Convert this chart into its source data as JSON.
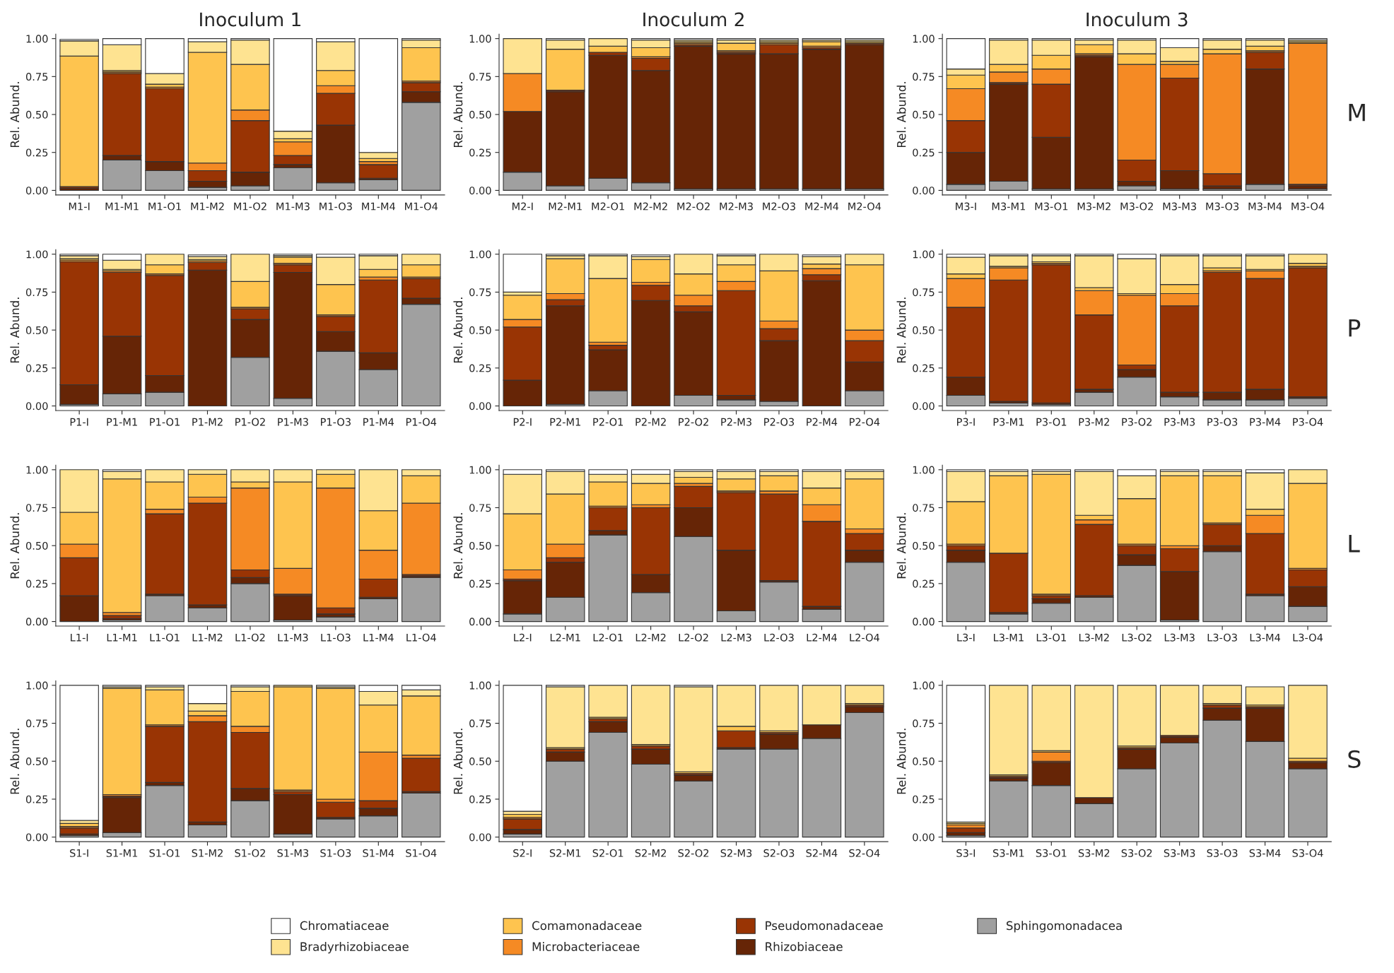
{
  "chart_data": [
    {
      "type": "bar",
      "stacked": true,
      "title": "Inoculum 1",
      "ylabel": "Rel. Abund.",
      "ylim": [
        -0.03,
        1.03
      ],
      "yticks": [
        {
          "value": 0,
          "label": "0.00"
        },
        {
          "value": 0.25,
          "label": "0.25"
        },
        {
          "value": 0.5,
          "label": "0.50"
        },
        {
          "value": 0.75,
          "label": "0.75"
        },
        {
          "value": 1,
          "label": "1.00"
        }
      ],
      "grid": false,
      "categories": [
        "M1-I",
        "M1-M1",
        "M1-O1",
        "M1-M2",
        "M1-O2",
        "M1-M3",
        "M1-O3",
        "M1-M4",
        "M1-O4"
      ],
      "series": [
        {
          "color": "#a0a0a0",
          "values": [
            null,
            0.2,
            0.13,
            0.02,
            0.03,
            0.15,
            0.05,
            0.07,
            0.58
          ]
        },
        {
          "color": "#662506",
          "values": [
            0.015,
            0.03,
            0.06,
            0.04,
            0.09,
            0.02,
            0.38,
            0.01,
            0.07
          ]
        },
        {
          "color": "#993404",
          "values": [
            0.01,
            0.54,
            0.48,
            0.07,
            0.34,
            0.06,
            0.21,
            0.09,
            0.06
          ]
        },
        {
          "color": "#f58a24",
          "values": [
            0,
            0.01,
            0.01,
            0.05,
            0.07,
            0.09,
            0.05,
            0.02,
            0.01
          ]
        },
        {
          "color": "#fec44f",
          "values": [
            0.86,
            0.01,
            0.02,
            0.73,
            0.3,
            0.02,
            0.1,
            0.02,
            0.22
          ]
        },
        {
          "color": "#fee391",
          "values": [
            0.1,
            0.17,
            0.07,
            0.07,
            0.16,
            0.05,
            0.19,
            0.04,
            0.05
          ]
        },
        {
          "color": "#ffffff",
          "values": [
            0.01,
            0.04,
            0.23,
            0.02,
            0.01,
            0.61,
            0.02,
            0.75,
            0.01
          ]
        }
      ]
    },
    {
      "type": "bar",
      "stacked": true,
      "title": "Inoculum 2",
      "ylabel": "Rel. Abund.",
      "ylim": [
        -0.03,
        1.03
      ],
      "yticks": [
        {
          "value": 0,
          "label": "0.00"
        },
        {
          "value": 0.25,
          "label": "0.25"
        },
        {
          "value": 0.5,
          "label": "0.50"
        },
        {
          "value": 0.75,
          "label": "0.75"
        },
        {
          "value": 1,
          "label": "1.00"
        }
      ],
      "grid": false,
      "categories": [
        "M2-I",
        "M2-M1",
        "M2-O1",
        "M2-M2",
        "M2-O2",
        "M2-M3",
        "M2-O3",
        "M2-M4",
        "M2-O4"
      ],
      "series": [
        {
          "color": "#a0a0a0",
          "values": [
            0.12,
            0.03,
            0.08,
            0.05,
            0.01,
            0.01,
            0.01,
            0.01,
            0.01
          ]
        },
        {
          "color": "#662506",
          "values": [
            0.4,
            0.62,
            0.81,
            0.74,
            0.94,
            0.89,
            0.89,
            0.92,
            0.95
          ]
        },
        {
          "color": "#993404",
          "values": [
            0,
            0.01,
            0.02,
            0.08,
            0.01,
            0.01,
            0.06,
            0.01,
            0.01
          ]
        },
        {
          "color": "#f58a24",
          "values": [
            0.25,
            0,
            0,
            0.01,
            0.01,
            0.01,
            0.01,
            0.01,
            0
          ]
        },
        {
          "color": "#fec44f",
          "values": [
            0,
            0.27,
            0.04,
            0.06,
            0.01,
            0.05,
            0.01,
            0.03,
            0.01
          ]
        },
        {
          "color": "#fee391",
          "values": [
            0.23,
            0.06,
            0.05,
            0.05,
            0.01,
            0.02,
            0.01,
            0.01,
            0.01
          ]
        },
        {
          "color": "#ffffff",
          "values": [
            0,
            0.01,
            0,
            0.01,
            0.01,
            0.01,
            0.01,
            0.01,
            0.01
          ]
        }
      ]
    },
    {
      "type": "bar",
      "stacked": true,
      "title": "Inoculum 3",
      "ylabel": "Rel. Abund.",
      "annotations": [
        "M"
      ],
      "ylim": [
        -0.03,
        1.03
      ],
      "yticks": [
        {
          "value": 0,
          "label": "0.00"
        },
        {
          "value": 0.25,
          "label": "0.25"
        },
        {
          "value": 0.5,
          "label": "0.50"
        },
        {
          "value": 0.75,
          "label": "0.75"
        },
        {
          "value": 1,
          "label": "1.00"
        }
      ],
      "grid": false,
      "categories": [
        "M3-I",
        "M3-M1",
        "M3-O1",
        "M3-M2",
        "M3-O2",
        "M3-M3",
        "M3-O3",
        "M3-M4",
        "M3-O4"
      ],
      "series": [
        {
          "color": "#a0a0a0",
          "values": [
            0.04,
            0.06,
            0.01,
            0.01,
            0.03,
            0.01,
            0.01,
            0.04,
            0.01
          ]
        },
        {
          "color": "#662506",
          "values": [
            0.21,
            0.64,
            0.34,
            0.87,
            0.03,
            0.12,
            0.02,
            0.76,
            0.02
          ]
        },
        {
          "color": "#993404",
          "values": [
            0.21,
            0.01,
            0.35,
            0.01,
            0.14,
            0.61,
            0.08,
            0.11,
            0.01
          ]
        },
        {
          "color": "#f58a24",
          "values": [
            0.21,
            0.07,
            0.1,
            0.01,
            0.63,
            0.09,
            0.79,
            0.01,
            0.93
          ]
        },
        {
          "color": "#fec44f",
          "values": [
            0.09,
            0.05,
            0.09,
            0.06,
            0.07,
            0.02,
            0.03,
            0.03,
            0.01
          ]
        },
        {
          "color": "#fee391",
          "values": [
            0.04,
            0.16,
            0.1,
            0.03,
            0.09,
            0.09,
            0.06,
            0.04,
            0.01
          ]
        },
        {
          "color": "#ffffff",
          "values": [
            0.2,
            0.01,
            0.01,
            0.01,
            0.01,
            0.06,
            0.01,
            0.01,
            0.01
          ]
        }
      ]
    },
    {
      "type": "bar",
      "stacked": true,
      "ylabel": "Rel. Abund.",
      "ylim": [
        -0.03,
        1.03
      ],
      "yticks": [
        {
          "value": 0,
          "label": "0.00"
        },
        {
          "value": 0.25,
          "label": "0.25"
        },
        {
          "value": 0.5,
          "label": "0.50"
        },
        {
          "value": 0.75,
          "label": "0.75"
        },
        {
          "value": 1,
          "label": "1.00"
        }
      ],
      "grid": false,
      "categories": [
        "P1-I",
        "P1-M1",
        "P1-O1",
        "P1-M2",
        "P1-O2",
        "P1-M3",
        "P1-O3",
        "P1-M4",
        "P1-O4"
      ],
      "series": [
        {
          "color": "#a0a0a0",
          "values": [
            0.01,
            0.08,
            0.09,
            null,
            0.32,
            0.05,
            0.36,
            0.24,
            0.67
          ]
        },
        {
          "color": "#662506",
          "values": [
            0.13,
            0.38,
            0.11,
            0.895,
            0.25,
            0.83,
            0.13,
            0.11,
            0.04
          ]
        },
        {
          "color": "#993404",
          "values": [
            0.81,
            0.42,
            0.66,
            0.05,
            0.07,
            0.05,
            0.1,
            0.48,
            0.13
          ]
        },
        {
          "color": "#f58a24",
          "values": [
            0.01,
            0.01,
            0.01,
            0.01,
            0.01,
            0.01,
            0.01,
            0.02,
            0.01
          ]
        },
        {
          "color": "#fec44f",
          "values": [
            0.01,
            0.01,
            0.06,
            0.01,
            0.17,
            0.04,
            0.2,
            0.05,
            0.08
          ]
        },
        {
          "color": "#fee391",
          "values": [
            0.02,
            0.06,
            0.07,
            0.02,
            0.18,
            0.01,
            0.18,
            0.09,
            0.07
          ]
        },
        {
          "color": "#ffffff",
          "values": [
            0.01,
            0.04,
            0,
            0.01,
            0,
            0.01,
            0.02,
            0.01,
            0
          ]
        }
      ]
    },
    {
      "type": "bar",
      "stacked": true,
      "ylabel": "Rel. Abund.",
      "ylim": [
        -0.03,
        1.03
      ],
      "yticks": [
        {
          "value": 0,
          "label": "0.00"
        },
        {
          "value": 0.25,
          "label": "0.25"
        },
        {
          "value": 0.5,
          "label": "0.50"
        },
        {
          "value": 0.75,
          "label": "0.75"
        },
        {
          "value": 1,
          "label": "1.00"
        }
      ],
      "grid": false,
      "categories": [
        "P2-I",
        "P2-M1",
        "P2-O1",
        "P2-M2",
        "P2-O2",
        "P2-M3",
        "P2-O3",
        "P2-M4",
        "P2-O4"
      ],
      "series": [
        {
          "color": "#a0a0a0",
          "values": [
            0,
            0.01,
            0.1,
            null,
            0.07,
            0.04,
            0.03,
            null,
            0.1
          ]
        },
        {
          "color": "#662506",
          "values": [
            0.17,
            0.65,
            0.27,
            0.695,
            0.55,
            0.03,
            0.4,
            0.825,
            0.19
          ]
        },
        {
          "color": "#993404",
          "values": [
            0.35,
            0.04,
            0.03,
            0.1,
            0.04,
            0.69,
            0.08,
            0.04,
            0.14
          ]
        },
        {
          "color": "#f58a24",
          "values": [
            0.05,
            0.04,
            0.02,
            0.02,
            0.07,
            0.06,
            0.05,
            0.04,
            0.07
          ]
        },
        {
          "color": "#fec44f",
          "values": [
            0.16,
            0.23,
            0.42,
            0.15,
            0.14,
            0.11,
            0.33,
            0.03,
            0.43
          ]
        },
        {
          "color": "#fee391",
          "values": [
            0.02,
            0.02,
            0.15,
            0.02,
            0.13,
            0.06,
            0.11,
            0.05,
            0.07
          ]
        },
        {
          "color": "#ffffff",
          "values": [
            0.25,
            0.01,
            0.01,
            0.01,
            0,
            0.01,
            0,
            0.01,
            0
          ]
        }
      ]
    },
    {
      "type": "bar",
      "stacked": true,
      "ylabel": "Rel. Abund.",
      "annotations": [
        "P"
      ],
      "ylim": [
        -0.03,
        1.03
      ],
      "yticks": [
        {
          "value": 0,
          "label": "0.00"
        },
        {
          "value": 0.25,
          "label": "0.25"
        },
        {
          "value": 0.5,
          "label": "0.50"
        },
        {
          "value": 0.75,
          "label": "0.75"
        },
        {
          "value": 1,
          "label": "1.00"
        }
      ],
      "grid": false,
      "categories": [
        "P3-I",
        "P3-M1",
        "P3-O1",
        "P3-M2",
        "P3-O2",
        "P3-M3",
        "P3-O3",
        "P3-M4",
        "P3-O4"
      ],
      "series": [
        {
          "color": "#a0a0a0",
          "values": [
            0.07,
            0.02,
            0.01,
            0.09,
            0.19,
            0.06,
            0.04,
            0.04,
            0.05
          ]
        },
        {
          "color": "#662506",
          "values": [
            0.12,
            0.01,
            0.01,
            0.02,
            0.05,
            0.03,
            0.05,
            0.07,
            0.01
          ]
        },
        {
          "color": "#993404",
          "values": [
            0.46,
            0.8,
            0.91,
            0.49,
            0.03,
            0.57,
            0.79,
            0.73,
            0.85
          ]
        },
        {
          "color": "#f58a24",
          "values": [
            0.19,
            0.08,
            0.01,
            0.16,
            0.46,
            0.08,
            0.01,
            0.05,
            0.01
          ]
        },
        {
          "color": "#fec44f",
          "values": [
            0.03,
            0.01,
            0.01,
            0.02,
            0.01,
            0.06,
            0.02,
            0.01,
            0.02
          ]
        },
        {
          "color": "#fee391",
          "values": [
            0.11,
            0.07,
            0.04,
            0.21,
            0.23,
            0.19,
            0.08,
            0.09,
            0.06
          ]
        },
        {
          "color": "#ffffff",
          "values": [
            0.02,
            0.01,
            0.01,
            0.01,
            0.03,
            0.01,
            0.01,
            0.01,
            0
          ]
        }
      ]
    },
    {
      "type": "bar",
      "stacked": true,
      "ylabel": "Rel. Abund.",
      "ylim": [
        -0.03,
        1.03
      ],
      "yticks": [
        {
          "value": 0,
          "label": "0.00"
        },
        {
          "value": 0.25,
          "label": "0.25"
        },
        {
          "value": 0.5,
          "label": "0.50"
        },
        {
          "value": 0.75,
          "label": "0.75"
        },
        {
          "value": 1,
          "label": "1.00"
        }
      ],
      "grid": false,
      "categories": [
        "L1-I",
        "L1-M1",
        "L1-O1",
        "L1-M2",
        "L1-O2",
        "L1-M3",
        "L1-O3",
        "L1-M4",
        "L1-O4"
      ],
      "series": [
        {
          "color": "#a0a0a0",
          "values": [
            0,
            0.01,
            0.17,
            0.09,
            0.25,
            0.01,
            0.03,
            0.15,
            0.29
          ]
        },
        {
          "color": "#662506",
          "values": [
            0.17,
            0.01,
            0.01,
            0.02,
            0.04,
            0.16,
            0.02,
            0.01,
            0.01
          ]
        },
        {
          "color": "#993404",
          "values": [
            0.25,
            0.02,
            0.53,
            0.67,
            0.05,
            0.01,
            0.04,
            0.12,
            0.01
          ]
        },
        {
          "color": "#f58a24",
          "values": [
            0.09,
            0.02,
            0.03,
            0.04,
            0.54,
            0.17,
            0.79,
            0.19,
            0.47
          ]
        },
        {
          "color": "#fec44f",
          "values": [
            0.21,
            0.88,
            0.18,
            0.15,
            0.04,
            0.57,
            0.09,
            0.26,
            0.18
          ]
        },
        {
          "color": "#fee391",
          "values": [
            0.28,
            0.05,
            0.08,
            0.03,
            0.08,
            0.08,
            0.03,
            0.27,
            0.04
          ]
        },
        {
          "color": "#ffffff",
          "values": [
            0,
            0.01,
            0,
            0,
            0,
            0,
            0,
            0,
            0
          ]
        }
      ]
    },
    {
      "type": "bar",
      "stacked": true,
      "ylabel": "Rel. Abund.",
      "ylim": [
        -0.03,
        1.03
      ],
      "yticks": [
        {
          "value": 0,
          "label": "0.00"
        },
        {
          "value": 0.25,
          "label": "0.25"
        },
        {
          "value": 0.5,
          "label": "0.50"
        },
        {
          "value": 0.75,
          "label": "0.75"
        },
        {
          "value": 1,
          "label": "1.00"
        }
      ],
      "grid": false,
      "categories": [
        "L2-I",
        "L2-M1",
        "L2-O1",
        "L2-M2",
        "L2-O2",
        "L2-M3",
        "L2-O3",
        "L2-M4",
        "L2-O4"
      ],
      "series": [
        {
          "color": "#a0a0a0",
          "values": [
            0.05,
            0.16,
            0.57,
            0.19,
            0.56,
            0.07,
            0.26,
            0.08,
            0.39
          ]
        },
        {
          "color": "#662506",
          "values": [
            0.22,
            0.23,
            0.03,
            0.12,
            0.19,
            0.4,
            0.01,
            0.02,
            0.08
          ]
        },
        {
          "color": "#993404",
          "values": [
            0.01,
            0.03,
            0.15,
            0.44,
            0.14,
            0.38,
            0.57,
            0.56,
            0.11
          ]
        },
        {
          "color": "#f58a24",
          "values": [
            0.06,
            0.09,
            0.01,
            0.02,
            0.02,
            0.01,
            0.02,
            0.11,
            0.03
          ]
        },
        {
          "color": "#fec44f",
          "values": [
            0.37,
            0.33,
            0.16,
            0.14,
            0.04,
            0.08,
            0.1,
            0.11,
            0.33
          ]
        },
        {
          "color": "#fee391",
          "values": [
            0.26,
            0.15,
            0.05,
            0.06,
            0.04,
            0.05,
            0.03,
            0.11,
            0.05
          ]
        },
        {
          "color": "#ffffff",
          "values": [
            0.03,
            0.01,
            0.03,
            0.03,
            0.01,
            0.01,
            0.01,
            0.01,
            0.01
          ]
        }
      ]
    },
    {
      "type": "bar",
      "stacked": true,
      "ylabel": "Rel. Abund.",
      "annotations": [
        "L"
      ],
      "ylim": [
        -0.03,
        1.03
      ],
      "yticks": [
        {
          "value": 0,
          "label": "0.00"
        },
        {
          "value": 0.25,
          "label": "0.25"
        },
        {
          "value": 0.5,
          "label": "0.50"
        },
        {
          "value": 0.75,
          "label": "0.75"
        },
        {
          "value": 1,
          "label": "1.00"
        }
      ],
      "grid": false,
      "categories": [
        "L3-I",
        "L3-M1",
        "L3-O1",
        "L3-M2",
        "L3-O2",
        "L3-M3",
        "L3-O3",
        "L3-M4",
        "L3-O4"
      ],
      "series": [
        {
          "color": "#a0a0a0",
          "values": [
            0.39,
            0.05,
            0.12,
            0.16,
            0.37,
            0.01,
            0.46,
            0.17,
            0.1
          ]
        },
        {
          "color": "#662506",
          "values": [
            0.08,
            0.01,
            0.03,
            0.01,
            0.07,
            0.32,
            0.04,
            0.01,
            0.13
          ]
        },
        {
          "color": "#993404",
          "values": [
            0.03,
            0.39,
            0.02,
            0.47,
            0.06,
            0.15,
            0.14,
            0.4,
            0.11
          ]
        },
        {
          "color": "#f58a24",
          "values": [
            0.01,
            0,
            0.01,
            0.03,
            0.01,
            0.02,
            0.01,
            0.12,
            0.01
          ]
        },
        {
          "color": "#fec44f",
          "values": [
            0.28,
            0.51,
            0.79,
            0.03,
            0.3,
            0.46,
            0.31,
            0.04,
            0.56
          ]
        },
        {
          "color": "#fee391",
          "values": [
            0.2,
            0.03,
            0.02,
            0.29,
            0.15,
            0.03,
            0.03,
            0.24,
            0.09
          ]
        },
        {
          "color": "#ffffff",
          "values": [
            0.01,
            0.01,
            0.01,
            0.01,
            0.04,
            0.01,
            0.01,
            0.02,
            0
          ]
        }
      ]
    },
    {
      "type": "bar",
      "stacked": true,
      "ylabel": "Rel. Abund.",
      "ylim": [
        -0.03,
        1.03
      ],
      "yticks": [
        {
          "value": 0,
          "label": "0.00"
        },
        {
          "value": 0.25,
          "label": "0.25"
        },
        {
          "value": 0.5,
          "label": "0.50"
        },
        {
          "value": 0.75,
          "label": "0.75"
        },
        {
          "value": 1,
          "label": "1.00"
        }
      ],
      "grid": false,
      "categories": [
        "S1-I",
        "S1-M1",
        "S1-O1",
        "S1-M2",
        "S1-O2",
        "S1-M3",
        "S1-O3",
        "S1-M4",
        "S1-O4"
      ],
      "series": [
        {
          "color": "#a0a0a0",
          "values": [
            0.01,
            0.03,
            0.34,
            0.08,
            0.24,
            0.02,
            0.12,
            0.14,
            0.29
          ]
        },
        {
          "color": "#662506",
          "values": [
            0.01,
            0.23,
            0.02,
            0.02,
            0.08,
            0.26,
            0.01,
            0.05,
            0.01
          ]
        },
        {
          "color": "#993404",
          "values": [
            0.04,
            0.01,
            0.37,
            0.66,
            0.37,
            0.02,
            0.1,
            0.05,
            0.22
          ]
        },
        {
          "color": "#f58a24",
          "values": [
            0.01,
            0.01,
            0.01,
            0.04,
            0.04,
            0.01,
            0.02,
            0.32,
            0.02
          ]
        },
        {
          "color": "#fec44f",
          "values": [
            0.02,
            0.7,
            0.23,
            0.03,
            0.23,
            0.68,
            0.73,
            0.31,
            0.39
          ]
        },
        {
          "color": "#fee391",
          "values": [
            0.02,
            0.01,
            0.02,
            0.05,
            0.03,
            0.01,
            0.01,
            0.09,
            0.04
          ]
        },
        {
          "color": "#ffffff",
          "values": [
            0.89,
            0.01,
            0.01,
            0.12,
            0.01,
            0,
            0.01,
            0.04,
            0.03
          ]
        }
      ]
    },
    {
      "type": "bar",
      "stacked": true,
      "ylabel": "Rel. Abund.",
      "legend": "bottom",
      "ylim": [
        -0.03,
        1.03
      ],
      "yticks": [
        {
          "value": 0,
          "label": "0.00"
        },
        {
          "value": 0.25,
          "label": "0.25"
        },
        {
          "value": 0.5,
          "label": "0.50"
        },
        {
          "value": 0.75,
          "label": "0.75"
        },
        {
          "value": 1,
          "label": "1.00"
        }
      ],
      "grid": false,
      "categories": [
        "S2-I",
        "S2-M1",
        "S2-O1",
        "S2-M2",
        "S2-O2",
        "S2-M3",
        "S2-O3",
        "S2-M4",
        "S2-O4"
      ],
      "series": [
        {
          "name": "Sphingomonadacea",
          "color": "#a0a0a0",
          "values": [
            0.02,
            0.5,
            0.69,
            0.48,
            0.37,
            0.58,
            0.58,
            0.65,
            0.82
          ]
        },
        {
          "name": "Rhizobiaceae",
          "color": "#662506",
          "values": [
            0.03,
            0.06,
            0.07,
            0.1,
            0.04,
            0.01,
            0.1,
            0.09,
            0.04
          ]
        },
        {
          "name": "Pseudomonadaceae",
          "color": "#993404",
          "values": [
            0.07,
            0.02,
            0.02,
            0.02,
            0.01,
            0.11,
            0.01,
            0,
            0.01
          ]
        },
        {
          "name": "Microbacteriaceae",
          "color": "#f58a24",
          "values": [
            0.01,
            0,
            0,
            0,
            0,
            0,
            0,
            0,
            0
          ]
        },
        {
          "name": "Comamonadaceae",
          "color": "#fec44f",
          "values": [
            0.02,
            0.01,
            0.01,
            0.01,
            0.01,
            0.03,
            0.01,
            0,
            0.01
          ]
        },
        {
          "name": "Bradyrhizobiaceae",
          "color": "#fee391",
          "values": [
            0.02,
            0.4,
            0.21,
            0.39,
            0.56,
            0.27,
            0.3,
            0.26,
            0.12
          ]
        },
        {
          "name": "Chromatiaceae",
          "color": "#ffffff",
          "values": [
            0.83,
            0.01,
            0,
            0,
            0.01,
            0,
            0,
            0,
            0
          ]
        }
      ]
    },
    {
      "type": "bar",
      "stacked": true,
      "ylabel": "Rel. Abund.",
      "annotations": [
        "S"
      ],
      "ylim": [
        -0.03,
        1.03
      ],
      "yticks": [
        {
          "value": 0,
          "label": "0.00"
        },
        {
          "value": 0.25,
          "label": "0.25"
        },
        {
          "value": 0.5,
          "label": "0.50"
        },
        {
          "value": 0.75,
          "label": "0.75"
        },
        {
          "value": 1,
          "label": "1.00"
        }
      ],
      "grid": false,
      "categories": [
        "S3-I",
        "S3-M1",
        "S3-O1",
        "S3-M2",
        "S3-O2",
        "S3-M3",
        "S3-O3",
        "S3-M4",
        "S3-O4"
      ],
      "series": [
        {
          "color": "#a0a0a0",
          "values": [
            0.01,
            0.37,
            0.34,
            0.22,
            0.45,
            0.62,
            0.77,
            0.63,
            0.45
          ]
        },
        {
          "color": "#662506",
          "values": [
            0.02,
            0.02,
            0.15,
            0.04,
            0.13,
            0.04,
            0.08,
            0.22,
            0.04
          ]
        },
        {
          "color": "#993404",
          "values": [
            0.03,
            0.01,
            0.01,
            0,
            0.01,
            0.01,
            0.02,
            0.01,
            0.01
          ]
        },
        {
          "color": "#f58a24",
          "values": [
            0.02,
            0,
            0.06,
            0,
            0,
            0,
            0,
            0,
            0
          ]
        },
        {
          "color": "#fec44f",
          "values": [
            0.01,
            0.01,
            0.01,
            0,
            0.01,
            0,
            0.01,
            0.01,
            0.02
          ]
        },
        {
          "color": "#fee391",
          "values": [
            0.01,
            0.59,
            0.43,
            0.74,
            0.4,
            0.33,
            0.12,
            0.12,
            0.48
          ]
        },
        {
          "color": "#ffffff",
          "values": [
            0.9,
            0,
            0,
            0,
            0,
            0,
            0,
            0,
            0
          ]
        }
      ]
    }
  ]
}
